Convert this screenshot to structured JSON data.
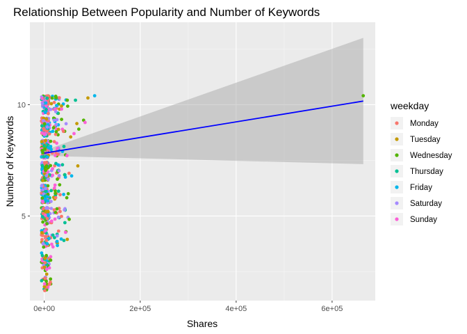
{
  "chart_data": {
    "type": "scatter",
    "title": "Relationship Between Popularity and Number of Keywords",
    "xlabel": "Shares",
    "ylabel": "Number of Keywords",
    "xlim": [
      -30000,
      690000
    ],
    "ylim": [
      1.2,
      13.7
    ],
    "x_ticks": [
      {
        "value": 0,
        "label": "0e+00"
      },
      {
        "value": 200000,
        "label": "2e+05"
      },
      {
        "value": 400000,
        "label": "4e+05"
      },
      {
        "value": 600000,
        "label": "6e+05"
      }
    ],
    "y_ticks": [
      {
        "value": 5,
        "label": "5"
      },
      {
        "value": 10,
        "label": "10"
      }
    ],
    "grid": true,
    "background": "#ebebeb",
    "legend": {
      "title": "weekday",
      "position": "right",
      "entries": [
        {
          "label": "Monday",
          "color": "#F8766D"
        },
        {
          "label": "Tuesday",
          "color": "#C49A00"
        },
        {
          "label": "Wednesday",
          "color": "#53B400"
        },
        {
          "label": "Thursday",
          "color": "#00C094"
        },
        {
          "label": "Friday",
          "color": "#00B6EB"
        },
        {
          "label": "Saturday",
          "color": "#A58AFF"
        },
        {
          "label": "Sunday",
          "color": "#FB61D7"
        }
      ]
    },
    "fit_line": {
      "method": "lm",
      "color": "#0000FF",
      "x": [
        0,
        665000
      ],
      "y": [
        7.82,
        10.16
      ],
      "ribbon_color": "#999999",
      "ribbon_upper": [
        7.95,
        13.0
      ],
      "ribbon_lower": [
        7.7,
        7.33
      ]
    },
    "outliers": [
      {
        "x": 91000,
        "y": 10.3,
        "weekday": "Tuesday"
      },
      {
        "x": 105000,
        "y": 10.4,
        "weekday": "Friday"
      },
      {
        "x": 665000,
        "y": 10.4,
        "weekday": "Wednesday"
      },
      {
        "x": 82000,
        "y": 9.3,
        "weekday": "Wednesday"
      },
      {
        "x": 68000,
        "y": 9.15,
        "weekday": "Tuesday"
      },
      {
        "x": 85000,
        "y": 9.2,
        "weekday": "Sunday"
      },
      {
        "x": 72000,
        "y": 8.9,
        "weekday": "Wednesday"
      },
      {
        "x": 62000,
        "y": 8.7,
        "weekday": "Sunday"
      },
      {
        "x": 55000,
        "y": 8.55,
        "weekday": "Tuesday"
      },
      {
        "x": 40000,
        "y": 8.8,
        "weekday": "Monday"
      },
      {
        "x": 65000,
        "y": 10.2,
        "weekday": "Thursday"
      },
      {
        "x": 48000,
        "y": 10.2,
        "weekday": "Wednesday"
      },
      {
        "x": 70000,
        "y": 7.25,
        "weekday": "Tuesday"
      },
      {
        "x": 57000,
        "y": 6.8,
        "weekday": "Friday"
      },
      {
        "x": 50000,
        "y": 6.0,
        "weekday": "Wednesday"
      },
      {
        "x": 43000,
        "y": 6.85,
        "weekday": "Thursday"
      },
      {
        "x": 38000,
        "y": 7.3,
        "weekday": "Thursday"
      },
      {
        "x": 48000,
        "y": 3.95,
        "weekday": "Tuesday"
      },
      {
        "x": 52000,
        "y": 4.85,
        "weekday": "Wednesday"
      },
      {
        "x": 43000,
        "y": 4.7,
        "weekday": "Thursday"
      },
      {
        "x": 33000,
        "y": 5.2,
        "weekday": "Monday"
      },
      {
        "x": 5000,
        "y": 2.6,
        "weekday": "Sunday"
      },
      {
        "x": 1500,
        "y": 2.2,
        "weekday": "Monday"
      },
      {
        "x": 1000,
        "y": 1.65,
        "weekday": "Monday"
      },
      {
        "x": 38000,
        "y": 7.9,
        "weekday": "Friday"
      },
      {
        "x": 36000,
        "y": 9.8,
        "weekday": "Sunday"
      },
      {
        "x": 32000,
        "y": 6.4,
        "weekday": "Wednesday"
      }
    ]
  }
}
